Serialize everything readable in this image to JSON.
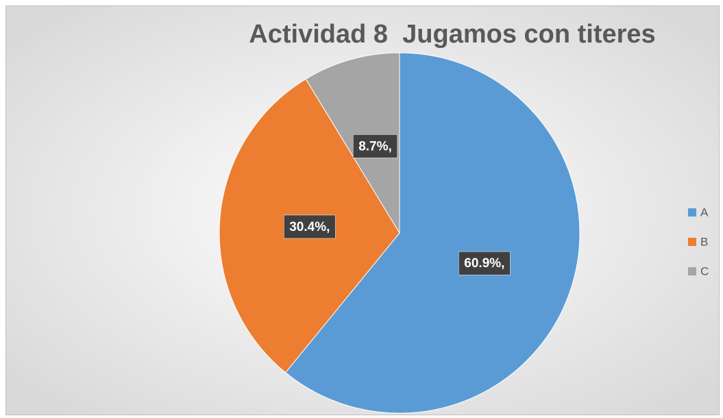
{
  "chart_data": {
    "type": "pie",
    "title": "Actividad 8  Jugamos con titeres",
    "categories": [
      "A",
      "B",
      "C"
    ],
    "values": [
      60.9,
      30.4,
      8.7
    ],
    "value_labels": [
      "60.9%,",
      "30.4%,",
      "8.7%,"
    ],
    "colors": [
      "#5b9bd5",
      "#ed7d31",
      "#a5a5a5"
    ],
    "legend": "right"
  }
}
